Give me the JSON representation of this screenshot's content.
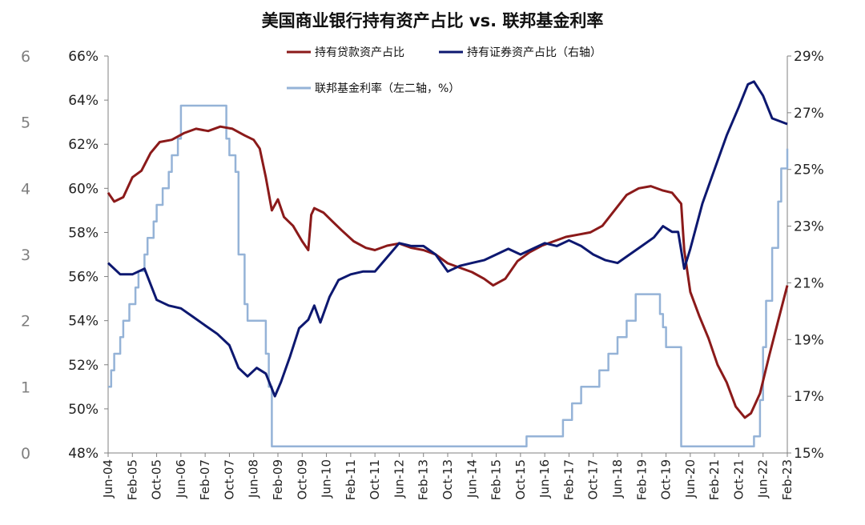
{
  "chart_data": {
    "type": "line",
    "title": "美国商业银行持有资产占比 vs. 联邦基金利率",
    "x_ticks": [
      "Jun-04",
      "Feb-05",
      "Oct-05",
      "Jun-06",
      "Feb-07",
      "Oct-07",
      "Jun-08",
      "Feb-09",
      "Oct-09",
      "Jun-10",
      "Feb-11",
      "Oct-11",
      "Jun-12",
      "Feb-13",
      "Oct-13",
      "Jun-14",
      "Feb-15",
      "Oct-15",
      "Jun-16",
      "Feb-17",
      "Oct-17",
      "Jun-18",
      "Feb-19",
      "Oct-19",
      "Jun-20",
      "Feb-21",
      "Oct-21",
      "Jun-22",
      "Feb-23"
    ],
    "x_range": [
      "2004-06",
      "2023-02"
    ],
    "axes": {
      "left": {
        "min": 48,
        "max": 66,
        "ticks": [
          "48%",
          "50%",
          "52%",
          "54%",
          "56%",
          "58%",
          "60%",
          "62%",
          "64%",
          "66%"
        ]
      },
      "right": {
        "min": 15,
        "max": 29,
        "ticks": [
          "15%",
          "17%",
          "19%",
          "21%",
          "23%",
          "25%",
          "27%",
          "29%"
        ]
      },
      "far_left": {
        "min": 0,
        "max": 6,
        "ticks": [
          "0",
          "1",
          "2",
          "3",
          "4",
          "5",
          "6"
        ]
      }
    },
    "legend_placement": "top-center",
    "series": [
      {
        "name": "持有贷款资产占比",
        "axis": "left",
        "color": "#8b1a1a",
        "points": [
          [
            "2004-06",
            59.8
          ],
          [
            "2004-08",
            59.4
          ],
          [
            "2004-11",
            59.6
          ],
          [
            "2005-02",
            60.5
          ],
          [
            "2005-05",
            60.8
          ],
          [
            "2005-08",
            61.6
          ],
          [
            "2005-11",
            62.1
          ],
          [
            "2006-03",
            62.2
          ],
          [
            "2006-07",
            62.5
          ],
          [
            "2006-11",
            62.7
          ],
          [
            "2007-03",
            62.6
          ],
          [
            "2007-07",
            62.8
          ],
          [
            "2007-11",
            62.7
          ],
          [
            "2008-03",
            62.4
          ],
          [
            "2008-06",
            62.2
          ],
          [
            "2008-08",
            61.8
          ],
          [
            "2008-10",
            60.5
          ],
          [
            "2008-12",
            59.0
          ],
          [
            "2009-02",
            59.5
          ],
          [
            "2009-04",
            58.7
          ],
          [
            "2009-07",
            58.3
          ],
          [
            "2009-10",
            57.6
          ],
          [
            "2009-12",
            57.2
          ],
          [
            "2010-01",
            58.8
          ],
          [
            "2010-02",
            59.1
          ],
          [
            "2010-05",
            58.9
          ],
          [
            "2010-08",
            58.5
          ],
          [
            "2010-11",
            58.1
          ],
          [
            "2011-03",
            57.6
          ],
          [
            "2011-07",
            57.3
          ],
          [
            "2011-10",
            57.2
          ],
          [
            "2012-02",
            57.4
          ],
          [
            "2012-06",
            57.5
          ],
          [
            "2012-10",
            57.3
          ],
          [
            "2013-02",
            57.2
          ],
          [
            "2013-06",
            57.0
          ],
          [
            "2013-10",
            56.6
          ],
          [
            "2014-02",
            56.4
          ],
          [
            "2014-06",
            56.2
          ],
          [
            "2014-10",
            55.9
          ],
          [
            "2015-01",
            55.6
          ],
          [
            "2015-05",
            55.9
          ],
          [
            "2015-09",
            56.7
          ],
          [
            "2016-01",
            57.1
          ],
          [
            "2016-05",
            57.4
          ],
          [
            "2016-09",
            57.6
          ],
          [
            "2017-01",
            57.8
          ],
          [
            "2017-05",
            57.9
          ],
          [
            "2017-09",
            58.0
          ],
          [
            "2018-01",
            58.3
          ],
          [
            "2018-05",
            59.0
          ],
          [
            "2018-09",
            59.7
          ],
          [
            "2019-01",
            60.0
          ],
          [
            "2019-05",
            60.1
          ],
          [
            "2019-09",
            59.9
          ],
          [
            "2019-12",
            59.8
          ],
          [
            "2020-03",
            59.3
          ],
          [
            "2020-04",
            57.2
          ],
          [
            "2020-06",
            55.3
          ],
          [
            "2020-09",
            54.2
          ],
          [
            "2020-12",
            53.2
          ],
          [
            "2021-03",
            52.0
          ],
          [
            "2021-06",
            51.2
          ],
          [
            "2021-09",
            50.1
          ],
          [
            "2021-12",
            49.6
          ],
          [
            "2022-02",
            49.8
          ],
          [
            "2022-05",
            50.7
          ],
          [
            "2022-08",
            52.4
          ],
          [
            "2022-11",
            54.0
          ],
          [
            "2023-02",
            55.6
          ]
        ]
      },
      {
        "name": "持有证券资产占比（右轴）",
        "axis": "right",
        "color": "#0d1870",
        "points": [
          [
            "2004-06",
            21.7
          ],
          [
            "2004-10",
            21.3
          ],
          [
            "2005-02",
            21.3
          ],
          [
            "2005-06",
            21.5
          ],
          [
            "2005-10",
            20.4
          ],
          [
            "2006-02",
            20.2
          ],
          [
            "2006-06",
            20.1
          ],
          [
            "2006-10",
            19.8
          ],
          [
            "2007-02",
            19.5
          ],
          [
            "2007-06",
            19.2
          ],
          [
            "2007-10",
            18.8
          ],
          [
            "2008-01",
            18.0
          ],
          [
            "2008-04",
            17.7
          ],
          [
            "2008-07",
            18.0
          ],
          [
            "2008-10",
            17.8
          ],
          [
            "2009-01",
            17.0
          ],
          [
            "2009-03",
            17.5
          ],
          [
            "2009-06",
            18.4
          ],
          [
            "2009-09",
            19.4
          ],
          [
            "2009-12",
            19.7
          ],
          [
            "2010-02",
            20.2
          ],
          [
            "2010-04",
            19.6
          ],
          [
            "2010-07",
            20.5
          ],
          [
            "2010-10",
            21.1
          ],
          [
            "2011-02",
            21.3
          ],
          [
            "2011-06",
            21.4
          ],
          [
            "2011-10",
            21.4
          ],
          [
            "2012-02",
            21.9
          ],
          [
            "2012-06",
            22.4
          ],
          [
            "2012-10",
            22.3
          ],
          [
            "2013-02",
            22.3
          ],
          [
            "2013-06",
            22.0
          ],
          [
            "2013-10",
            21.4
          ],
          [
            "2014-02",
            21.6
          ],
          [
            "2014-06",
            21.7
          ],
          [
            "2014-10",
            21.8
          ],
          [
            "2015-02",
            22.0
          ],
          [
            "2015-06",
            22.2
          ],
          [
            "2015-10",
            22.0
          ],
          [
            "2016-02",
            22.2
          ],
          [
            "2016-06",
            22.4
          ],
          [
            "2016-10",
            22.3
          ],
          [
            "2017-02",
            22.5
          ],
          [
            "2017-06",
            22.3
          ],
          [
            "2017-10",
            22.0
          ],
          [
            "2018-02",
            21.8
          ],
          [
            "2018-06",
            21.7
          ],
          [
            "2018-10",
            22.0
          ],
          [
            "2019-02",
            22.3
          ],
          [
            "2019-06",
            22.6
          ],
          [
            "2019-09",
            23.0
          ],
          [
            "2019-12",
            22.8
          ],
          [
            "2020-02",
            22.8
          ],
          [
            "2020-04",
            21.5
          ],
          [
            "2020-06",
            22.2
          ],
          [
            "2020-10",
            23.8
          ],
          [
            "2021-02",
            25.0
          ],
          [
            "2021-06",
            26.2
          ],
          [
            "2021-10",
            27.2
          ],
          [
            "2022-01",
            28.0
          ],
          [
            "2022-03",
            28.1
          ],
          [
            "2022-06",
            27.6
          ],
          [
            "2022-09",
            26.8
          ],
          [
            "2023-02",
            26.6
          ]
        ]
      },
      {
        "name": "联邦基金利率（左二轴，%）",
        "axis": "far_left",
        "color": "#95b3d7",
        "step": true,
        "points": [
          [
            "2004-06",
            1.0
          ],
          [
            "2004-07",
            1.25
          ],
          [
            "2004-08",
            1.5
          ],
          [
            "2004-10",
            1.75
          ],
          [
            "2004-11",
            2.0
          ],
          [
            "2005-01",
            2.25
          ],
          [
            "2005-03",
            2.5
          ],
          [
            "2005-04",
            2.75
          ],
          [
            "2005-06",
            3.0
          ],
          [
            "2005-07",
            3.25
          ],
          [
            "2005-09",
            3.5
          ],
          [
            "2005-10",
            3.75
          ],
          [
            "2005-12",
            4.0
          ],
          [
            "2006-02",
            4.25
          ],
          [
            "2006-03",
            4.5
          ],
          [
            "2006-05",
            4.75
          ],
          [
            "2006-06",
            5.25
          ],
          [
            "2007-09",
            4.75
          ],
          [
            "2007-10",
            4.5
          ],
          [
            "2007-12",
            4.25
          ],
          [
            "2008-01",
            3.0
          ],
          [
            "2008-03",
            2.25
          ],
          [
            "2008-04",
            2.0
          ],
          [
            "2008-10",
            1.5
          ],
          [
            "2008-11",
            1.0
          ],
          [
            "2008-12",
            0.1
          ],
          [
            "2015-12",
            0.25
          ],
          [
            "2016-12",
            0.5
          ],
          [
            "2017-03",
            0.75
          ],
          [
            "2017-06",
            1.0
          ],
          [
            "2017-12",
            1.25
          ],
          [
            "2018-03",
            1.5
          ],
          [
            "2018-06",
            1.75
          ],
          [
            "2018-09",
            2.0
          ],
          [
            "2018-12",
            2.4
          ],
          [
            "2019-08",
            2.1
          ],
          [
            "2019-09",
            1.9
          ],
          [
            "2019-10",
            1.6
          ],
          [
            "2020-03",
            0.1
          ],
          [
            "2022-03",
            0.25
          ],
          [
            "2022-05",
            0.8
          ],
          [
            "2022-06",
            1.6
          ],
          [
            "2022-07",
            2.3
          ],
          [
            "2022-09",
            3.1
          ],
          [
            "2022-11",
            3.8
          ],
          [
            "2022-12",
            4.3
          ],
          [
            "2023-02",
            4.6
          ]
        ]
      }
    ]
  }
}
